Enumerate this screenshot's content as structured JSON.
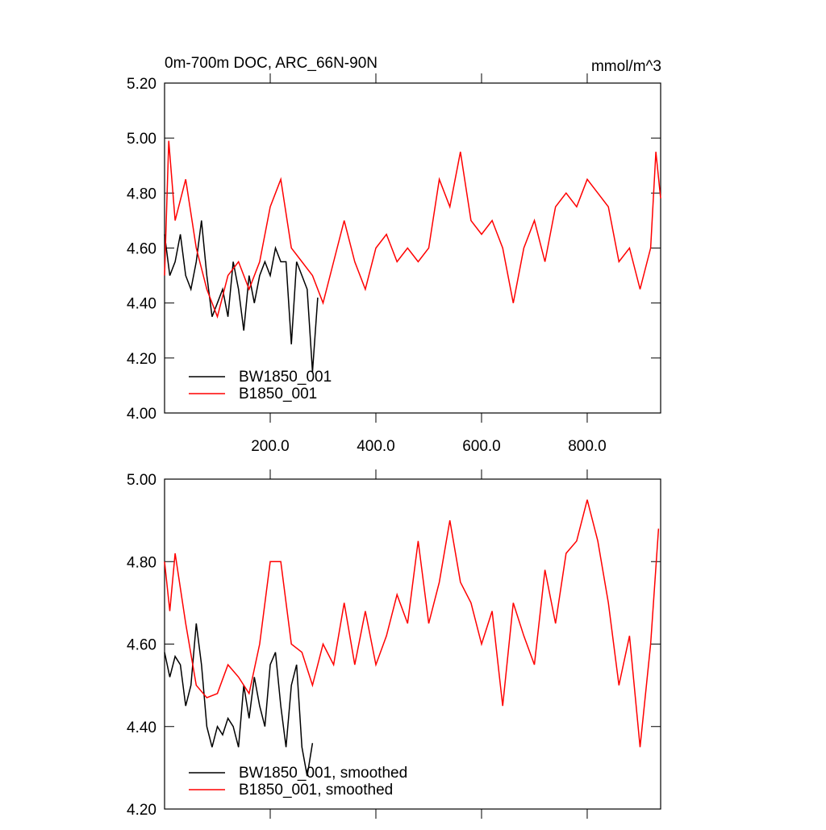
{
  "chart_data": [
    {
      "type": "line",
      "title": "0m-700m DOC, ARC_66N-90N",
      "units": "mmol/m^3",
      "xlim": [
        0,
        939
      ],
      "ylim": [
        4.0,
        5.2
      ],
      "xticks": [
        {
          "value": 200,
          "label": "200.0"
        },
        {
          "value": 400,
          "label": "400.0"
        },
        {
          "value": 600,
          "label": "600.0"
        },
        {
          "value": 800,
          "label": "800.0"
        }
      ],
      "yticks": [
        {
          "value": 4.0,
          "label": "4.00"
        },
        {
          "value": 4.2,
          "label": "4.20"
        },
        {
          "value": 4.4,
          "label": "4.40"
        },
        {
          "value": 4.6,
          "label": "4.60"
        },
        {
          "value": 4.8,
          "label": "4.80"
        },
        {
          "value": 5.0,
          "label": "5.00"
        },
        {
          "value": 5.2,
          "label": "5.20"
        }
      ],
      "legend": "lower-left",
      "series": [
        {
          "name": "BW1850_001",
          "color": "#000000",
          "x": [
            0,
            10,
            20,
            30,
            40,
            50,
            60,
            70,
            80,
            90,
            100,
            110,
            120,
            130,
            140,
            150,
            160,
            170,
            180,
            190,
            200,
            210,
            220,
            230,
            240,
            250,
            260,
            270,
            280,
            290
          ],
          "values": [
            4.65,
            4.5,
            4.55,
            4.65,
            4.5,
            4.45,
            4.55,
            4.7,
            4.5,
            4.35,
            4.4,
            4.45,
            4.35,
            4.55,
            4.45,
            4.3,
            4.5,
            4.4,
            4.5,
            4.55,
            4.5,
            4.6,
            4.55,
            4.55,
            4.25,
            4.55,
            4.5,
            4.45,
            4.15,
            4.42
          ]
        },
        {
          "name": "B1850_001",
          "color": "#ff0000",
          "x": [
            0,
            8,
            20,
            40,
            60,
            80,
            100,
            120,
            140,
            160,
            180,
            200,
            220,
            240,
            260,
            280,
            300,
            320,
            340,
            360,
            380,
            400,
            420,
            440,
            460,
            480,
            500,
            520,
            540,
            560,
            580,
            600,
            620,
            640,
            660,
            680,
            700,
            720,
            740,
            760,
            780,
            800,
            820,
            840,
            860,
            880,
            900,
            920,
            930,
            939
          ],
          "values": [
            4.5,
            4.99,
            4.7,
            4.85,
            4.6,
            4.45,
            4.35,
            4.5,
            4.55,
            4.45,
            4.55,
            4.75,
            4.85,
            4.6,
            4.55,
            4.5,
            4.4,
            4.55,
            4.7,
            4.55,
            4.45,
            4.6,
            4.65,
            4.55,
            4.6,
            4.55,
            4.6,
            4.85,
            4.75,
            4.95,
            4.7,
            4.65,
            4.7,
            4.6,
            4.4,
            4.6,
            4.7,
            4.55,
            4.75,
            4.8,
            4.75,
            4.85,
            4.8,
            4.75,
            4.55,
            4.6,
            4.45,
            4.6,
            4.95,
            4.78
          ]
        }
      ]
    },
    {
      "type": "line",
      "xlim": [
        0,
        939
      ],
      "ylim": [
        4.2,
        5.0
      ],
      "yticks": [
        {
          "value": 4.2,
          "label": "4.20"
        },
        {
          "value": 4.4,
          "label": "4.40"
        },
        {
          "value": 4.6,
          "label": "4.60"
        },
        {
          "value": 4.8,
          "label": "4.80"
        },
        {
          "value": 5.0,
          "label": "5.00"
        }
      ],
      "legend": "lower-left",
      "series": [
        {
          "name": "BW1850_001, smoothed",
          "color": "#000000",
          "x": [
            0,
            10,
            20,
            30,
            40,
            50,
            60,
            70,
            80,
            90,
            100,
            110,
            120,
            130,
            140,
            150,
            160,
            170,
            180,
            190,
            200,
            210,
            220,
            230,
            240,
            250,
            260,
            270,
            280
          ],
          "values": [
            4.58,
            4.52,
            4.57,
            4.55,
            4.45,
            4.5,
            4.65,
            4.55,
            4.4,
            4.35,
            4.4,
            4.38,
            4.42,
            4.4,
            4.35,
            4.5,
            4.42,
            4.52,
            4.45,
            4.4,
            4.55,
            4.58,
            4.45,
            4.35,
            4.5,
            4.55,
            4.35,
            4.28,
            4.36
          ]
        },
        {
          "name": "B1850_001, smoothed",
          "color": "#ff0000",
          "x": [
            0,
            10,
            20,
            40,
            60,
            80,
            100,
            120,
            140,
            160,
            180,
            200,
            220,
            240,
            260,
            280,
            300,
            320,
            340,
            360,
            380,
            400,
            420,
            440,
            460,
            480,
            500,
            520,
            540,
            560,
            580,
            600,
            620,
            640,
            660,
            680,
            700,
            720,
            740,
            760,
            780,
            800,
            820,
            840,
            860,
            880,
            900,
            920,
            935
          ],
          "values": [
            4.8,
            4.68,
            4.82,
            4.65,
            4.5,
            4.47,
            4.48,
            4.55,
            4.52,
            4.48,
            4.6,
            4.8,
            4.8,
            4.6,
            4.58,
            4.5,
            4.6,
            4.55,
            4.7,
            4.55,
            4.68,
            4.55,
            4.62,
            4.72,
            4.65,
            4.85,
            4.65,
            4.75,
            4.9,
            4.75,
            4.7,
            4.6,
            4.68,
            4.45,
            4.7,
            4.62,
            4.55,
            4.78,
            4.65,
            4.82,
            4.85,
            4.95,
            4.85,
            4.7,
            4.5,
            4.62,
            4.35,
            4.6,
            4.88
          ]
        }
      ]
    }
  ]
}
